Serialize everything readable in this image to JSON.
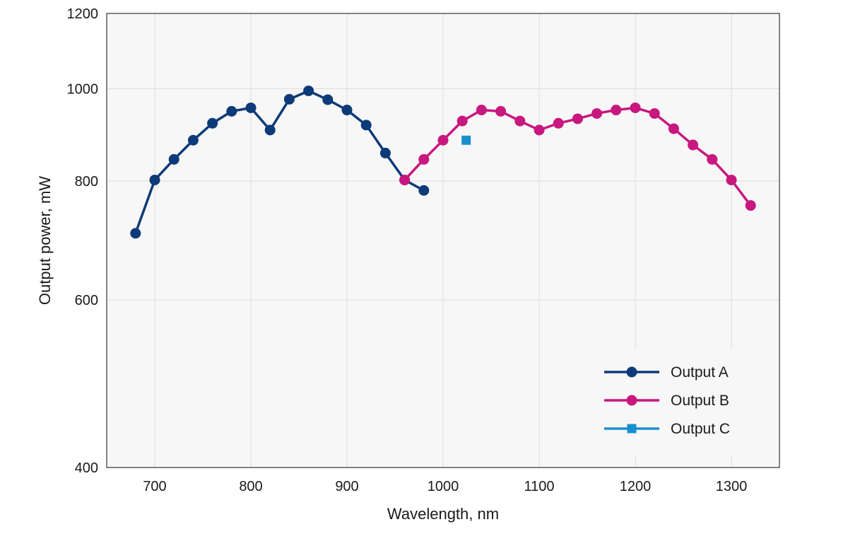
{
  "chart_data": {
    "type": "line",
    "title": "",
    "xlabel": "Wavelength, nm",
    "ylabel": "Output power, mW",
    "xlim": [
      650,
      1350
    ],
    "ylim": [
      400,
      1200
    ],
    "yscale": "log",
    "x_ticks": [
      700,
      800,
      900,
      1000,
      1100,
      1200,
      1300
    ],
    "y_ticks": [
      400,
      600,
      800,
      1000,
      1200
    ],
    "grid": true,
    "legend_position": "bottom-right",
    "plot_background": "#f7f7f7",
    "grid_color": "#dddddd",
    "series": [
      {
        "name": "Output A",
        "color": "#0d3a78",
        "marker": "circle",
        "x": [
          680,
          700,
          720,
          740,
          760,
          780,
          800,
          820,
          840,
          860,
          880,
          900,
          920,
          940,
          960,
          980
        ],
        "y": [
          705,
          802,
          843,
          883,
          920,
          947,
          955,
          905,
          975,
          995,
          974,
          950,
          916,
          856,
          802,
          782
        ]
      },
      {
        "name": "Output B",
        "color": "#c8177f",
        "marker": "circle",
        "x": [
          960,
          980,
          1000,
          1020,
          1040,
          1060,
          1080,
          1100,
          1120,
          1140,
          1160,
          1180,
          1200,
          1220,
          1240,
          1260,
          1280,
          1300,
          1320
        ],
        "y": [
          802,
          843,
          883,
          925,
          950,
          947,
          925,
          905,
          920,
          930,
          942,
          950,
          955,
          942,
          908,
          873,
          843,
          802,
          754
        ]
      },
      {
        "name": "Output C",
        "color": "#1a8fd0",
        "marker": "square",
        "x": [
          1024
        ],
        "y": [
          883
        ]
      }
    ]
  }
}
